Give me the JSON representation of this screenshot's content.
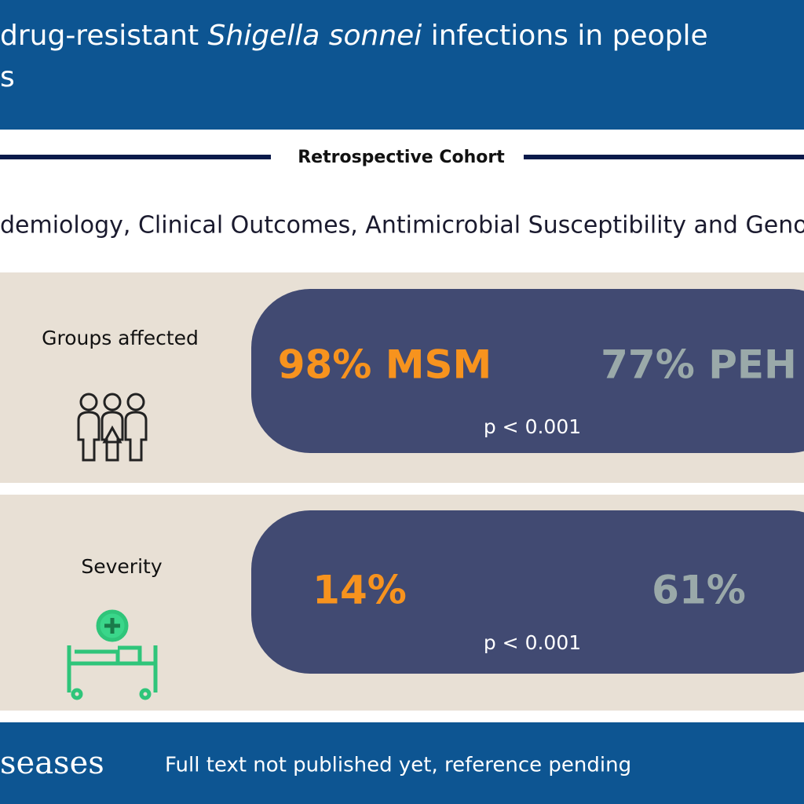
{
  "header": {
    "title_parts": [
      "drug-resistant ",
      "Shigella sonnei",
      " infections in people"
    ],
    "title_line2": "s"
  },
  "study_type": "Retrospective Cohort",
  "subtitle": "demiology, Clinical Outcomes, Antimicrobial Susceptibility and Genor",
  "panels": [
    {
      "label": "Groups affected",
      "left": "98% MSM",
      "right": "77% PEH",
      "p_value": "p < 0.001"
    },
    {
      "label": "Severity",
      "left": "14%",
      "right": "61%",
      "p_value": "p < 0.001"
    }
  ],
  "footer": {
    "journal": "seases",
    "note": "Full text not published yet, reference pending"
  }
}
